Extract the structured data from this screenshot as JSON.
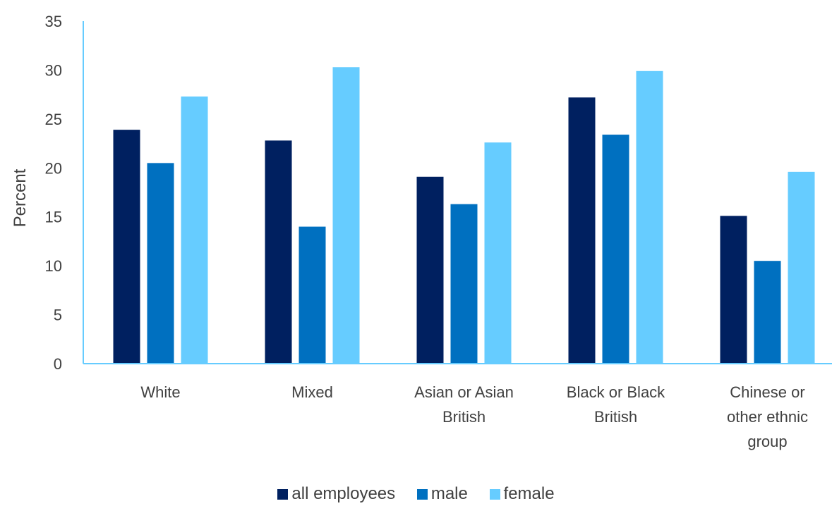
{
  "chart_data": {
    "type": "bar",
    "title": "",
    "xlabel": "",
    "ylabel": "Percent",
    "ylim": [
      0,
      35
    ],
    "yticks": [
      0,
      5,
      10,
      15,
      20,
      25,
      30,
      35
    ],
    "grid": false,
    "legend_position": "bottom",
    "categories": [
      [
        "White"
      ],
      [
        "Mixed"
      ],
      [
        "Asian or Asian",
        "British"
      ],
      [
        "Black or Black",
        "British"
      ],
      [
        "Chinese or",
        "other ethnic",
        "group"
      ]
    ],
    "series": [
      {
        "name": "all employees",
        "color": "#002060",
        "values": [
          23.9,
          22.8,
          19.1,
          27.2,
          15.1
        ]
      },
      {
        "name": "male",
        "color": "#0070C0",
        "values": [
          20.5,
          14.0,
          16.3,
          23.4,
          10.5
        ]
      },
      {
        "name": "female",
        "color": "#66CCFF",
        "values": [
          27.3,
          30.3,
          22.6,
          29.9,
          19.6
        ]
      }
    ],
    "axis_color": "#66CCFF"
  }
}
